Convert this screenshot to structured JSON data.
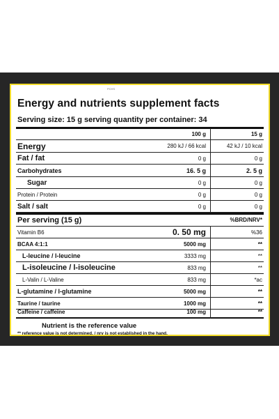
{
  "label_header": {
    "tiny_mark": "PCHS",
    "title": "Energy and nutrients supplement facts",
    "serving_line": "Serving size: 15 g serving quantity per container: 34",
    "col1": "100 g",
    "col2": "15 g"
  },
  "nutrients": [
    {
      "name": "Energy",
      "v1": "280 kJ / 66 kcal",
      "v2": "42 kJ / 10 kcal"
    },
    {
      "name": "Fat / fat",
      "v1": "0 g",
      "v2": "0 g"
    },
    {
      "name": "Carbohydrates",
      "v1": "16. 5 g",
      "v2": "2. 5 g"
    },
    {
      "name": "Sugar",
      "v1": "0 g",
      "v2": "0 g"
    },
    {
      "name": "Protein / Protein",
      "v1": "0 g",
      "v2": "0 g"
    },
    {
      "name": "Salt / salt",
      "v1": "0 g",
      "v2": "0 g"
    }
  ],
  "per_serving": {
    "heading": "Per serving (15 g)",
    "col_header": "%BRD/NRV*",
    "rows": [
      {
        "name": "Vitamin B6",
        "v1": "0. 50 mg",
        "v2": "%36"
      },
      {
        "name": "BCAA 4:1:1",
        "v1": "5000 mg",
        "v2": "**"
      },
      {
        "name": "L-leucine / l-leucine",
        "v1": "3333 mg",
        "v2": "**"
      },
      {
        "name": "L-isoleucine / l-isoleucine",
        "v1": "833 mg",
        "v2": "**"
      },
      {
        "name": "L-Valin / L-Valine",
        "v1": "833 mg",
        "v2": "*ac"
      },
      {
        "name": "L-glutamine / l-glutamine",
        "v1": "5000 mg",
        "v2": "**"
      },
      {
        "name": "Taurine / taurine",
        "v1": "1000 mg",
        "v2": "**"
      },
      {
        "name": "Caffeine / caffeine",
        "v1": "100 mg",
        "v2": "**"
      }
    ]
  },
  "footer": {
    "reference": "Nutrient is the reference value",
    "note": "** reference value is not determined. / nrv is not established in the hand."
  },
  "colors": {
    "frame": "#262626",
    "border": "#f2dc2a"
  }
}
